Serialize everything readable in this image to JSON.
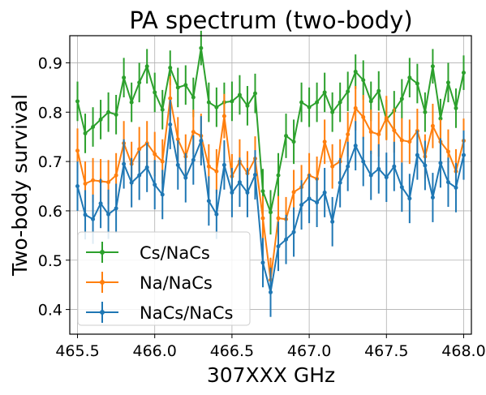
{
  "chart_data": {
    "type": "line",
    "title": "PA spectrum (two-body)",
    "xlabel": "307XXX GHz",
    "ylabel": "Two-body survival",
    "xlim": [
      465.45,
      468.05
    ],
    "ylim": [
      0.35,
      0.955
    ],
    "xticks": [
      465.5,
      466.0,
      466.5,
      467.0,
      467.5,
      468.0
    ],
    "xtick_labels": [
      "465.5",
      "466.0",
      "466.5",
      "467.0",
      "467.5",
      "468.0"
    ],
    "yticks": [
      0.4,
      0.5,
      0.6,
      0.7,
      0.8,
      0.9
    ],
    "ytick_labels": [
      "0.4",
      "0.5",
      "0.6",
      "0.7",
      "0.8",
      "0.9"
    ],
    "grid": true,
    "legend_position": "lower-left",
    "x": [
      465.5,
      465.55,
      465.6,
      465.65,
      465.7,
      465.75,
      465.8,
      465.85,
      465.9,
      465.95,
      466.0,
      466.05,
      466.1,
      466.15,
      466.2,
      466.25,
      466.3,
      466.35,
      466.4,
      466.45,
      466.5,
      466.55,
      466.6,
      466.65,
      466.7,
      466.75,
      466.8,
      466.85,
      466.9,
      466.95,
      467.0,
      467.05,
      467.1,
      467.15,
      467.2,
      467.25,
      467.3,
      467.35,
      467.4,
      467.45,
      467.5,
      467.55,
      467.6,
      467.65,
      467.7,
      467.75,
      467.8,
      467.85,
      467.9,
      467.95,
      468.0
    ],
    "series": [
      {
        "name": "Cs/NaCs",
        "color": "#2ca02c",
        "values": [
          0.822,
          0.757,
          0.77,
          0.785,
          0.8,
          0.795,
          0.87,
          0.82,
          0.86,
          0.893,
          0.84,
          0.805,
          0.89,
          0.85,
          0.855,
          0.83,
          0.93,
          0.82,
          0.81,
          0.82,
          0.822,
          0.835,
          0.813,
          0.838,
          0.64,
          0.597,
          0.672,
          0.752,
          0.74,
          0.82,
          0.81,
          0.82,
          0.84,
          0.8,
          0.82,
          0.842,
          0.882,
          0.865,
          0.822,
          0.843,
          0.785,
          0.803,
          0.827,
          0.87,
          0.858,
          0.8,
          0.893,
          0.787,
          0.86,
          0.808,
          0.88
        ],
        "errors": [
          0.04,
          0.04,
          0.04,
          0.04,
          0.04,
          0.04,
          0.04,
          0.04,
          0.04,
          0.035,
          0.04,
          0.04,
          0.035,
          0.04,
          0.04,
          0.04,
          0.035,
          0.04,
          0.04,
          0.04,
          0.04,
          0.04,
          0.04,
          0.04,
          0.045,
          0.045,
          0.045,
          0.045,
          0.045,
          0.04,
          0.04,
          0.04,
          0.04,
          0.04,
          0.04,
          0.04,
          0.035,
          0.04,
          0.04,
          0.04,
          0.04,
          0.04,
          0.04,
          0.04,
          0.04,
          0.04,
          0.035,
          0.04,
          0.04,
          0.04,
          0.035
        ]
      },
      {
        "name": "Na/NaCs",
        "color": "#ff7f0e",
        "values": [
          0.722,
          0.655,
          0.662,
          0.66,
          0.658,
          0.672,
          0.737,
          0.695,
          0.725,
          0.737,
          0.715,
          0.7,
          0.828,
          0.745,
          0.71,
          0.76,
          0.752,
          0.69,
          0.68,
          0.792,
          0.67,
          0.7,
          0.676,
          0.706,
          0.585,
          0.46,
          0.585,
          0.583,
          0.638,
          0.648,
          0.672,
          0.665,
          0.74,
          0.69,
          0.7,
          0.755,
          0.808,
          0.79,
          0.76,
          0.755,
          0.788,
          0.763,
          0.743,
          0.74,
          0.762,
          0.71,
          0.772,
          0.74,
          0.72,
          0.68,
          0.742
        ],
        "errors": [
          0.045,
          0.045,
          0.045,
          0.045,
          0.045,
          0.045,
          0.045,
          0.045,
          0.045,
          0.045,
          0.045,
          0.045,
          0.045,
          0.045,
          0.045,
          0.045,
          0.045,
          0.045,
          0.045,
          0.045,
          0.045,
          0.045,
          0.045,
          0.045,
          0.045,
          0.045,
          0.045,
          0.045,
          0.045,
          0.045,
          0.045,
          0.045,
          0.045,
          0.045,
          0.045,
          0.045,
          0.045,
          0.045,
          0.045,
          0.045,
          0.045,
          0.045,
          0.045,
          0.045,
          0.045,
          0.045,
          0.045,
          0.045,
          0.045,
          0.045,
          0.045
        ]
      },
      {
        "name": "NaCs/NaCs",
        "color": "#1f77b4",
        "values": [
          0.65,
          0.592,
          0.583,
          0.615,
          0.593,
          0.605,
          0.695,
          0.657,
          0.672,
          0.688,
          0.653,
          0.633,
          0.775,
          0.693,
          0.667,
          0.703,
          0.742,
          0.62,
          0.593,
          0.693,
          0.637,
          0.658,
          0.637,
          0.673,
          0.495,
          0.435,
          0.528,
          0.542,
          0.557,
          0.612,
          0.625,
          0.617,
          0.637,
          0.578,
          0.657,
          0.69,
          0.732,
          0.7,
          0.672,
          0.685,
          0.668,
          0.69,
          0.648,
          0.625,
          0.713,
          0.692,
          0.627,
          0.697,
          0.658,
          0.647,
          0.713
        ],
        "errors": [
          0.05,
          0.05,
          0.05,
          0.05,
          0.05,
          0.05,
          0.05,
          0.05,
          0.05,
          0.05,
          0.05,
          0.05,
          0.05,
          0.05,
          0.05,
          0.05,
          0.05,
          0.05,
          0.05,
          0.05,
          0.05,
          0.05,
          0.05,
          0.05,
          0.05,
          0.05,
          0.05,
          0.05,
          0.05,
          0.05,
          0.05,
          0.05,
          0.05,
          0.05,
          0.05,
          0.05,
          0.05,
          0.05,
          0.05,
          0.05,
          0.05,
          0.05,
          0.05,
          0.05,
          0.05,
          0.05,
          0.05,
          0.05,
          0.05,
          0.05,
          0.05
        ]
      }
    ]
  }
}
